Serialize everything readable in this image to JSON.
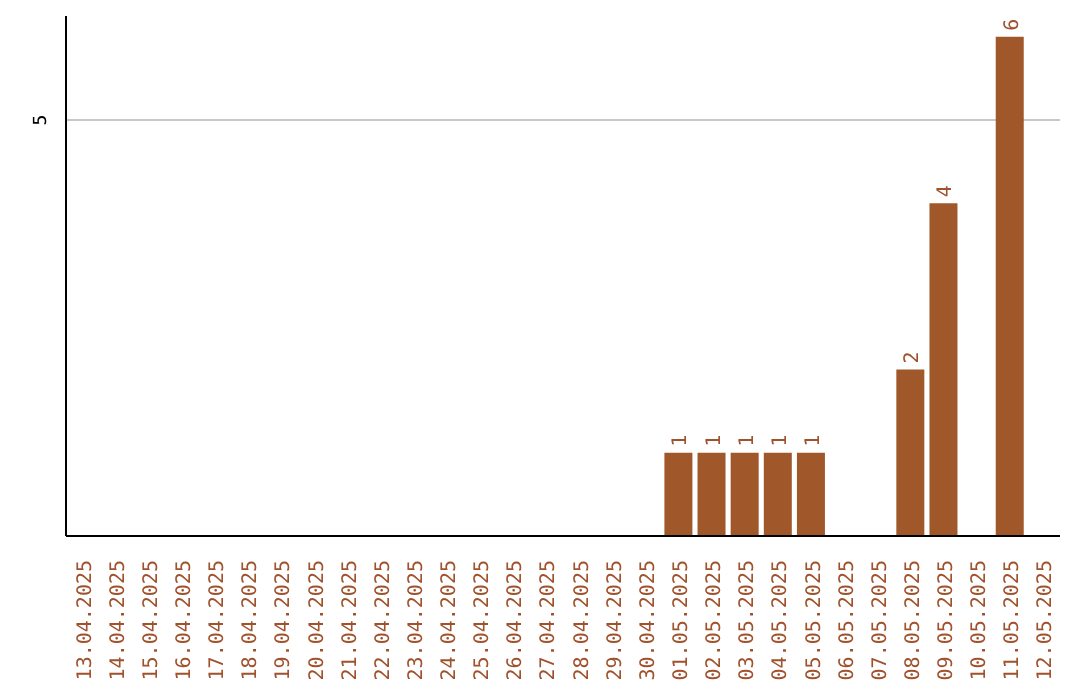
{
  "chart_data": {
    "type": "bar",
    "categories": [
      "13.04.2025",
      "14.04.2025",
      "15.04.2025",
      "16.04.2025",
      "17.04.2025",
      "18.04.2025",
      "19.04.2025",
      "20.04.2025",
      "21.04.2025",
      "22.04.2025",
      "23.04.2025",
      "24.04.2025",
      "25.04.2025",
      "26.04.2025",
      "27.04.2025",
      "28.04.2025",
      "29.04.2025",
      "30.04.2025",
      "01.05.2025",
      "02.05.2025",
      "03.05.2025",
      "04.05.2025",
      "05.05.2025",
      "06.05.2025",
      "07.05.2025",
      "08.05.2025",
      "09.05.2025",
      "10.05.2025",
      "11.05.2025",
      "12.05.2025"
    ],
    "values": [
      null,
      null,
      null,
      null,
      null,
      null,
      null,
      null,
      null,
      null,
      null,
      null,
      null,
      null,
      null,
      null,
      null,
      null,
      1,
      1,
      1,
      1,
      1,
      null,
      null,
      2,
      4,
      null,
      6,
      null
    ],
    "color": "#a0572a",
    "ylim": [
      0,
      6.25
    ],
    "yticks": [
      5
    ],
    "grid": "y",
    "data_labels": true
  }
}
